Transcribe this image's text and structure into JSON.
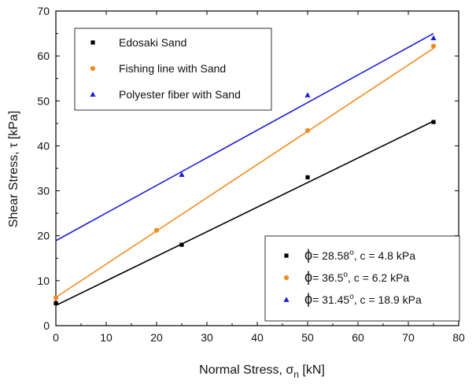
{
  "chart_data": {
    "type": "scatter",
    "xlabel": "Normal Stress, σ",
    "xlabel_sub": "n",
    "xlabel_unit": " [kN]",
    "ylabel": "Shear Stress, τ [kPa]",
    "xlim": [
      0,
      80
    ],
    "ylim": [
      0,
      70
    ],
    "xticks": [
      0,
      10,
      20,
      30,
      40,
      50,
      60,
      70,
      80
    ],
    "yticks": [
      0,
      10,
      20,
      30,
      40,
      50,
      60,
      70
    ],
    "grid": false,
    "series": [
      {
        "name": "Edosaki Sand",
        "marker": "square",
        "color": "#000000",
        "x": [
          0,
          25,
          50,
          75
        ],
        "y": [
          5.0,
          18.0,
          33.0,
          45.3
        ],
        "fit": {
          "x": [
            0,
            75
          ],
          "y": [
            4.5,
            45.5
          ]
        },
        "fit_label": {
          "phi": "28.58",
          "c": "4.8"
        }
      },
      {
        "name": "Fishing line with Sand",
        "marker": "circle",
        "color": "#f28c1e",
        "x": [
          0,
          20,
          50,
          75
        ],
        "y": [
          6.2,
          21.2,
          43.4,
          62.2
        ],
        "fit": {
          "x": [
            0,
            75
          ],
          "y": [
            6.3,
            61.7
          ]
        },
        "fit_label": {
          "phi": "36.5",
          "c": "6.2"
        }
      },
      {
        "name": "Polyester fiber with Sand",
        "marker": "triangle",
        "color": "#1f1fd6",
        "x": [
          25,
          50,
          75
        ],
        "y": [
          33.6,
          51.3,
          64.0
        ],
        "fit": {
          "x": [
            0,
            75
          ],
          "y": [
            18.9,
            65.0
          ]
        },
        "fit_label": {
          "phi": "31.45",
          "c": "18.9"
        }
      }
    ],
    "legend": {
      "position": "top-left",
      "fit_legend_position": "bottom-right"
    }
  }
}
